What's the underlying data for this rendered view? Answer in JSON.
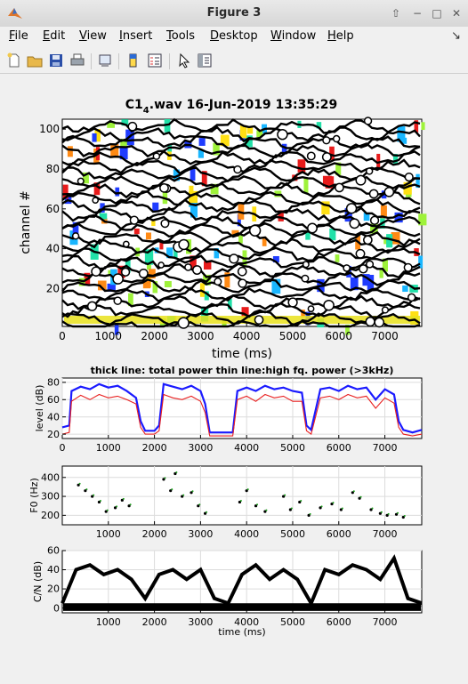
{
  "window": {
    "title": "Figure 3",
    "buttons": [
      "up-icon",
      "restore-icon",
      "maximize-icon",
      "close-icon"
    ]
  },
  "menu": {
    "items": [
      "File",
      "Edit",
      "View",
      "Insert",
      "Tools",
      "Desktop",
      "Window",
      "Help"
    ],
    "underline": [
      "F",
      "E",
      "V",
      "I",
      "T",
      "D",
      "W",
      "H"
    ],
    "close_glyph": "↘"
  },
  "toolbar": {
    "icons": [
      "new-figure-icon",
      "open-file-icon",
      "save-icon",
      "print-icon",
      "link-plot-icon",
      "colorbar-icon",
      "legend-icon",
      "edit-plot-icon",
      "property-inspector-icon"
    ]
  },
  "figure": {
    "title_prefix": "C1",
    "title_sub": "4",
    "title_suffix": ".wav  16-Jun-2019 13:35:29",
    "colors": {
      "blue": "#1a1aff",
      "red": "#e82020",
      "green": "#1a9c1a",
      "black": "#000000"
    }
  },
  "chart_data": [
    {
      "type": "heatmap",
      "title": "C1_4.wav  16-Jun-2019 13:35:29",
      "xlabel": "time (ms)",
      "ylabel": "channel #",
      "xlim": [
        0,
        7800
      ],
      "ylim": [
        1,
        105
      ],
      "xticks": [
        0,
        1000,
        2000,
        3000,
        4000,
        5000,
        6000,
        7000
      ],
      "yticks": [
        20,
        40,
        60,
        80,
        100
      ]
    },
    {
      "type": "line",
      "title": "thick line: total power thin line:high fq. power (>3kHz)",
      "xlabel": "",
      "ylabel": "level (dB)",
      "xlim": [
        0,
        7800
      ],
      "ylim": [
        15,
        85
      ],
      "xticks": [
        0,
        1000,
        2000,
        3000,
        4000,
        5000,
        6000,
        7000
      ],
      "yticks": [
        20,
        40,
        60,
        80
      ],
      "grid": true,
      "series": [
        {
          "x": [
            0,
            150,
            200,
            400,
            600,
            800,
            1000,
            1200,
            1400,
            1600,
            1700,
            1800,
            2000,
            2100,
            2200,
            2400,
            2600,
            2800,
            3000,
            3100,
            3200,
            3400,
            3600,
            3700,
            3800,
            4000,
            4200,
            4400,
            4600,
            4800,
            5000,
            5200,
            5300,
            5400,
            5600,
            5800,
            6000,
            6200,
            6400,
            6600,
            6800,
            7000,
            7200,
            7300,
            7400,
            7600,
            7800
          ],
          "y": [
            28,
            30,
            70,
            75,
            72,
            78,
            74,
            76,
            70,
            62,
            35,
            24,
            24,
            30,
            78,
            75,
            72,
            76,
            70,
            55,
            22,
            22,
            22,
            22,
            70,
            74,
            70,
            76,
            72,
            74,
            70,
            68,
            30,
            25,
            72,
            74,
            70,
            76,
            72,
            74,
            60,
            72,
            66,
            35,
            25,
            22,
            25
          ]
        },
        {
          "x": [
            0,
            150,
            200,
            400,
            600,
            800,
            1000,
            1200,
            1400,
            1600,
            1700,
            1800,
            2000,
            2100,
            2200,
            2400,
            2600,
            2800,
            3000,
            3100,
            3200,
            3400,
            3600,
            3700,
            3800,
            4000,
            4200,
            4400,
            4600,
            4800,
            5000,
            5200,
            5300,
            5400,
            5600,
            5800,
            6000,
            6200,
            6400,
            6600,
            6800,
            7000,
            7200,
            7300,
            7400,
            7600,
            7800
          ],
          "y": [
            20,
            22,
            58,
            65,
            60,
            66,
            62,
            64,
            60,
            55,
            28,
            20,
            20,
            24,
            66,
            62,
            60,
            64,
            58,
            45,
            18,
            18,
            18,
            18,
            60,
            64,
            58,
            66,
            62,
            64,
            58,
            58,
            24,
            20,
            62,
            64,
            60,
            66,
            62,
            64,
            50,
            62,
            56,
            28,
            20,
            18,
            20
          ]
        }
      ]
    },
    {
      "type": "scatter",
      "xlabel": "",
      "ylabel": "F0 (Hz)",
      "xlim": [
        0,
        7800
      ],
      "ylim": [
        150,
        460
      ],
      "xticks": [
        1000,
        2000,
        3000,
        4000,
        5000,
        6000,
        7000
      ],
      "yticks": [
        200,
        300,
        400
      ],
      "grid": true,
      "series": [
        {
          "x": [
            350,
            500,
            650,
            800,
            950,
            1150,
            1300,
            1450,
            2200,
            2350,
            2450,
            2600,
            2800,
            2950,
            3100,
            3850,
            4000,
            4200,
            4400,
            4800,
            4950,
            5150,
            5350,
            5600,
            5850,
            6050,
            6300,
            6450,
            6700,
            6900,
            7050,
            7250,
            7400
          ],
          "y": [
            360,
            330,
            300,
            270,
            220,
            240,
            280,
            250,
            390,
            330,
            420,
            300,
            320,
            250,
            210,
            270,
            330,
            250,
            220,
            300,
            230,
            270,
            200,
            240,
            260,
            230,
            320,
            290,
            230,
            210,
            200,
            205,
            190
          ]
        }
      ]
    },
    {
      "type": "line",
      "xlabel": "time (ms)",
      "ylabel": "C/N (dB)",
      "xlim": [
        0,
        7800
      ],
      "ylim": [
        -5,
        60
      ],
      "xticks": [
        1000,
        2000,
        3000,
        4000,
        5000,
        6000,
        7000
      ],
      "yticks": [
        0,
        20,
        40,
        60
      ],
      "grid": true,
      "series": [
        {
          "x": [
            0,
            300,
            600,
            900,
            1200,
            1500,
            1800,
            2100,
            2400,
            2700,
            3000,
            3300,
            3600,
            3900,
            4200,
            4500,
            4800,
            5100,
            5400,
            5700,
            6000,
            6300,
            6600,
            6900,
            7200,
            7500,
            7800
          ],
          "y": [
            5,
            40,
            45,
            35,
            40,
            30,
            10,
            35,
            40,
            30,
            40,
            10,
            5,
            35,
            45,
            30,
            40,
            30,
            5,
            40,
            35,
            45,
            40,
            30,
            52,
            10,
            5
          ]
        }
      ]
    }
  ]
}
